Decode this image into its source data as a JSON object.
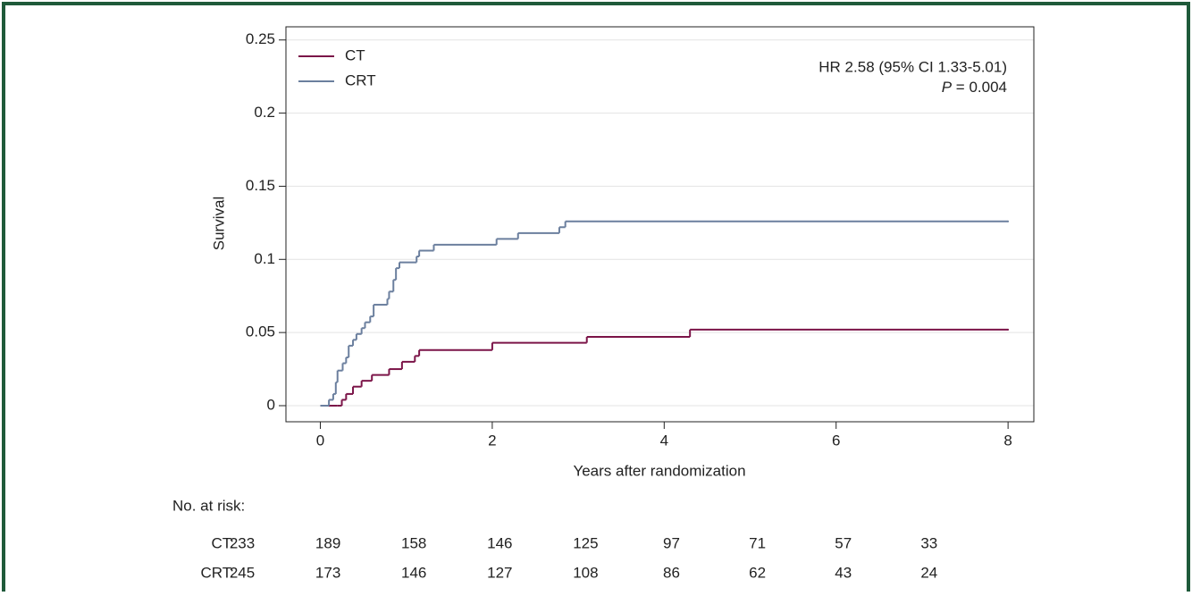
{
  "chart_data": {
    "type": "step",
    "xlabel": "Years after randomization",
    "ylabel": "Survival",
    "xlim": [
      -0.4,
      8.3
    ],
    "ylim": [
      -0.011,
      0.259
    ],
    "xticks": [
      0,
      2,
      4,
      6,
      8
    ],
    "yticks": [
      0,
      0.05,
      0.1,
      0.15,
      0.2,
      0.25
    ],
    "grid": true,
    "legend": "upper left",
    "annotation": "HR 2.58 (95% CI 1.33-5.01)",
    "p_label": "P",
    "p_value": "= 0.004",
    "series": [
      {
        "name": "CT",
        "color": "#7b1448",
        "x": [
          0,
          0.2,
          0.25,
          0.3,
          0.38,
          0.48,
          0.6,
          0.8,
          0.95,
          1.1,
          1.15,
          2.0,
          3.1,
          4.3,
          8
        ],
        "values": [
          0,
          0,
          0.004,
          0.008,
          0.013,
          0.017,
          0.021,
          0.025,
          0.03,
          0.034,
          0.038,
          0.043,
          0.047,
          0.052,
          0.052
        ]
      },
      {
        "name": "CRT",
        "color": "#6b7f9e",
        "x": [
          0,
          0.1,
          0.15,
          0.18,
          0.2,
          0.26,
          0.3,
          0.33,
          0.38,
          0.42,
          0.48,
          0.52,
          0.58,
          0.62,
          0.78,
          0.8,
          0.85,
          0.88,
          0.92,
          1.12,
          1.15,
          1.32,
          2.05,
          2.3,
          2.78,
          2.85,
          8
        ],
        "values": [
          0,
          0.004,
          0.008,
          0.016,
          0.024,
          0.029,
          0.033,
          0.041,
          0.045,
          0.049,
          0.053,
          0.057,
          0.061,
          0.069,
          0.073,
          0.078,
          0.086,
          0.094,
          0.098,
          0.102,
          0.106,
          0.11,
          0.114,
          0.118,
          0.122,
          0.126,
          0.126
        ]
      }
    ],
    "risk_table": {
      "title": "No. at risk:",
      "rows": [
        {
          "label": "CT:",
          "color": "#7b1448",
          "values": [
            233,
            189,
            158,
            146,
            125,
            97,
            71,
            57,
            33
          ]
        },
        {
          "label": "CRT:",
          "color": "#6b7f9e",
          "values": [
            245,
            173,
            146,
            127,
            108,
            86,
            62,
            43,
            24
          ]
        }
      ]
    }
  }
}
